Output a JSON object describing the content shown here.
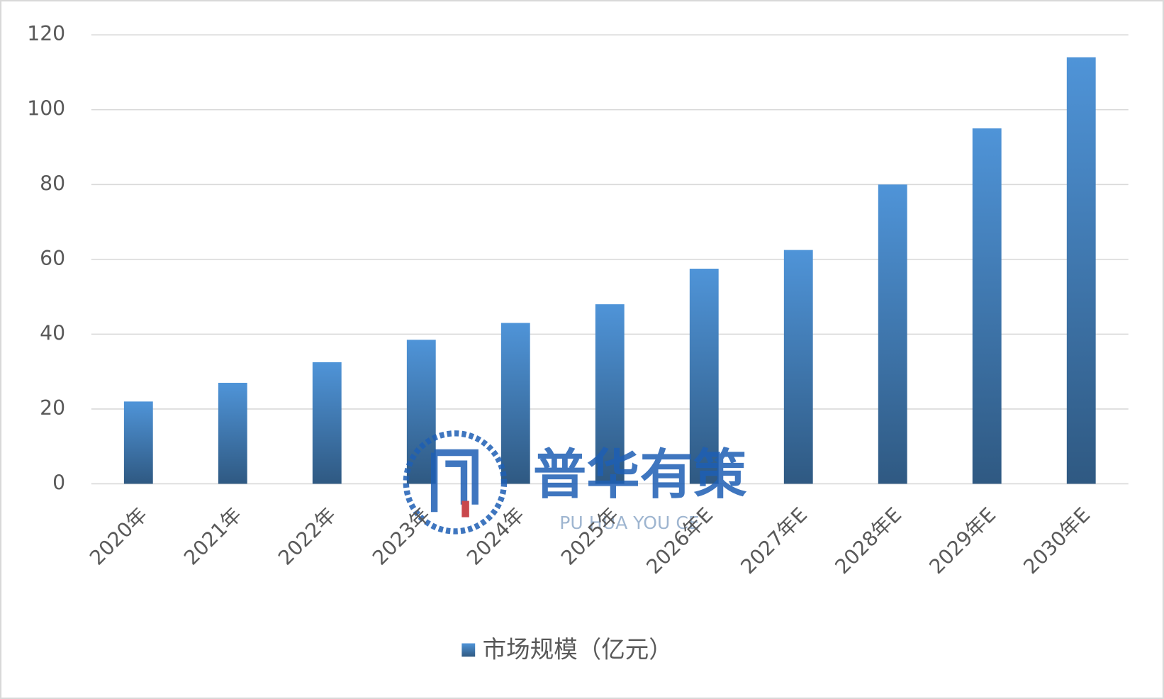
{
  "chart_data": {
    "type": "bar",
    "categories": [
      "2020年",
      "2021年",
      "2022年",
      "2023年",
      "2024年",
      "2025年",
      "2026年E",
      "2027年E",
      "2028年E",
      "2029年E",
      "2030年E"
    ],
    "series": [
      {
        "name": "市场规模（亿元）",
        "color": "#4f94d8",
        "values": [
          22,
          27,
          32.5,
          38.5,
          43,
          48,
          57.5,
          62.5,
          80,
          95,
          114
        ]
      }
    ],
    "ylim": [
      0,
      120
    ],
    "yticks": [
      0,
      20,
      40,
      60,
      80,
      100,
      120
    ],
    "grid": true,
    "legend": "bottom",
    "watermark": "普华有策",
    "watermark_subtitle": "PU HUA YOU CE"
  }
}
